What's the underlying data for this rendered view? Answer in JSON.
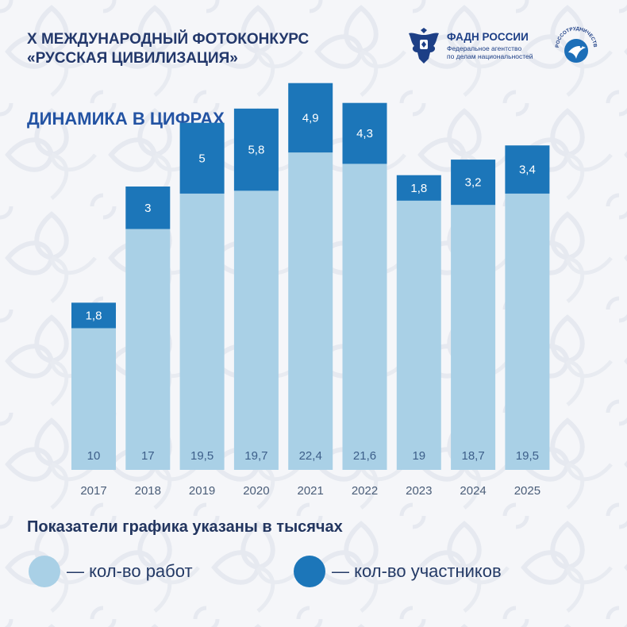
{
  "header": {
    "title_line1": "X МЕЖДУНАРОДНЫЙ ФОТОКОНКУРС",
    "title_line2": "«РУССКАЯ ЦИВИЛИЗАЦИЯ»"
  },
  "logos": {
    "fadn": {
      "name": "ФАДН РОССИИ",
      "sub_line1": "Федеральное агентство",
      "sub_line2": "по делам национальностей"
    },
    "rossotrudnichestvo": {
      "name": "РОССОТРУДНИЧЕСТВО"
    }
  },
  "section_title": "ДИНАМИКА В ЦИФРАХ",
  "footnote": "Показатели графика указаны в тысячах",
  "legend": {
    "works_label": "— кол-во работ",
    "participants_label": "— кол-во участников"
  },
  "colors": {
    "works": "#a9d0e6",
    "participants": "#1c76b9",
    "title": "#23386b",
    "section_title": "#2353a3"
  },
  "chart_data": {
    "type": "bar",
    "stacked": true,
    "categories": [
      "2017",
      "2018",
      "2019",
      "2020",
      "2021",
      "2022",
      "2023",
      "2024",
      "2025"
    ],
    "series": [
      {
        "name": "кол-во работ",
        "values": [
          10,
          17,
          19.5,
          19.7,
          22.4,
          21.6,
          19,
          18.7,
          19.5
        ],
        "labels": [
          "10",
          "17",
          "19,5",
          "19,7",
          "22,4",
          "21,6",
          "19",
          "18,7",
          "19,5"
        ]
      },
      {
        "name": "кол-во участников",
        "values": [
          1.8,
          3,
          5,
          5.8,
          4.9,
          4.3,
          1.8,
          3.2,
          3.4
        ],
        "labels": [
          "1,8",
          "3",
          "5",
          "5,8",
          "4,9",
          "4,3",
          "1,8",
          "3,2",
          "3,4"
        ]
      }
    ],
    "unit": "тысячи",
    "grid": false
  }
}
